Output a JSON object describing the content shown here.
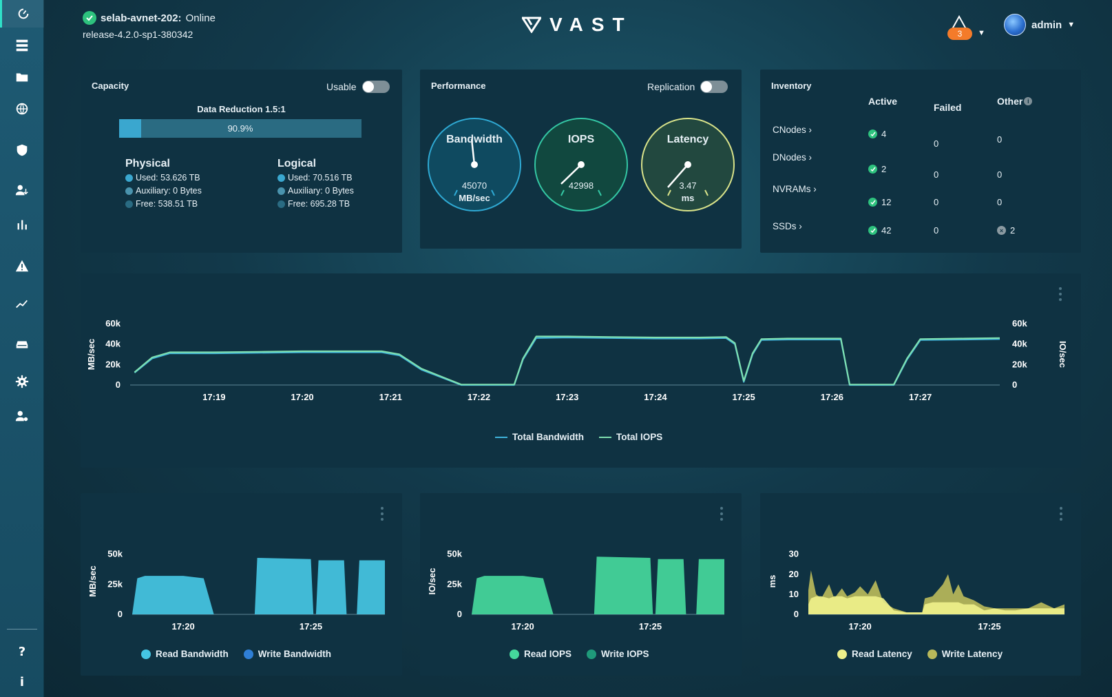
{
  "header": {
    "cluster_name": "selab-avnet-202:",
    "cluster_status": "Online",
    "release": "release-4.2.0-sp1-380342",
    "logo_text": "VAST",
    "alerts_count": "3",
    "user_name": "admin"
  },
  "sidebar": {
    "items": [
      {
        "icon": "dashboard-gauge-icon"
      },
      {
        "icon": "server-list-icon"
      },
      {
        "icon": "folders-icon"
      },
      {
        "icon": "globe-icon"
      },
      {
        "icon": "shield-icon"
      },
      {
        "icon": "user-manage-icon"
      },
      {
        "icon": "bar-chart-icon"
      },
      {
        "icon": "alert-triangle-icon"
      },
      {
        "icon": "analytics-trend-icon"
      },
      {
        "icon": "hardware-drive-icon"
      },
      {
        "icon": "gear-icon"
      },
      {
        "icon": "user-settings-icon"
      }
    ],
    "help": "?",
    "info": "i"
  },
  "capacity": {
    "title": "Capacity",
    "toggle_label": "Usable",
    "data_reduction": "Data Reduction 1.5:1",
    "usage_percent": 90.9,
    "usage_label": "90.9%",
    "physical": {
      "title": "Physical",
      "used": "Used: 53.626 TB",
      "auxiliary": "Auxiliary: 0 Bytes",
      "free": "Free: 538.51 TB"
    },
    "logical": {
      "title": "Logical",
      "used": "Used: 70.516 TB",
      "auxiliary": "Auxiliary: 0 Bytes",
      "free": "Free: 695.28 TB"
    },
    "colors": {
      "used": "#3aa7cf",
      "auxiliary": "#4a93ad",
      "free": "#2a6b82"
    }
  },
  "performance": {
    "title": "Performance",
    "toggle_label": "Replication",
    "gauges": [
      {
        "title": "Bandwidth",
        "value": "45070",
        "unit": "MB/sec",
        "color": "#2fa9d3",
        "fill": "#0f4a60"
      },
      {
        "title": "IOPS",
        "value": "42998",
        "unit": "",
        "color": "#34c7a4",
        "fill": "#11483f"
      },
      {
        "title": "Latency",
        "value": "3.47",
        "unit": "ms",
        "color": "#d9e38a",
        "fill": "#22483f"
      }
    ]
  },
  "inventory": {
    "title": "Inventory",
    "columns": [
      "Active",
      "Failed",
      "Other"
    ],
    "rows": [
      {
        "name": "CNodes ›",
        "active": "4",
        "failed": "0",
        "other": "0"
      },
      {
        "name": "DNodes ›",
        "active": "2",
        "failed": "0",
        "other": "0"
      },
      {
        "name": "NVRAMs ›",
        "active": "12",
        "failed": "0",
        "other": "0"
      },
      {
        "name": "SSDs ›",
        "active": "42",
        "failed": "0",
        "other": "2"
      }
    ]
  },
  "chart_data": [
    {
      "type": "line",
      "title": "",
      "ylabel": "MB/sec",
      "y2label": "IO/sec",
      "ylim": [
        0,
        60000
      ],
      "y_ticks": [
        "0",
        "20k",
        "40k",
        "60k"
      ],
      "x_ticks": [
        "17:19",
        "17:20",
        "17:21",
        "17:22",
        "17:23",
        "17:24",
        "17:25",
        "17:26",
        "17:27"
      ],
      "x_minutes": [
        18.1,
        18.3,
        18.5,
        19.0,
        19.5,
        20.0,
        20.5,
        20.9,
        21.1,
        21.35,
        21.8,
        22.4,
        22.5,
        22.65,
        23.0,
        23.5,
        24.0,
        24.5,
        24.8,
        24.9,
        25.0,
        25.1,
        25.2,
        25.5,
        26.0,
        26.1,
        26.2,
        26.5,
        26.7,
        26.85,
        27.0,
        27.5,
        27.9
      ],
      "series": [
        {
          "name": "Total Bandwidth",
          "color": "#3fb4dc",
          "values": [
            12000,
            26000,
            31000,
            31000,
            31500,
            32000,
            32000,
            32000,
            29000,
            15000,
            0,
            0,
            25000,
            46000,
            46500,
            46000,
            45500,
            45500,
            46000,
            40000,
            3000,
            30000,
            44000,
            44500,
            44500,
            44500,
            0,
            0,
            0,
            25000,
            44000,
            44500,
            45000
          ]
        },
        {
          "name": "Total IOPS",
          "color": "#7fe0b0",
          "values": [
            12500,
            27000,
            32000,
            32000,
            32500,
            33000,
            33000,
            33000,
            30000,
            16000,
            500,
            500,
            26000,
            47500,
            47500,
            47000,
            46500,
            46500,
            47000,
            41000,
            4000,
            31000,
            45000,
            45500,
            45500,
            45500,
            500,
            500,
            500,
            26000,
            45000,
            45500,
            46000
          ]
        }
      ],
      "legend": "bottom"
    },
    {
      "type": "area",
      "ylabel": "MB/sec",
      "y_ticks": [
        "0",
        "25k",
        "50k"
      ],
      "x_ticks": [
        "17:20",
        "17:25"
      ],
      "ylim": [
        0,
        55000
      ],
      "x_minutes": [
        18.0,
        18.2,
        18.5,
        20.0,
        20.8,
        21.2,
        22.8,
        22.9,
        25.0,
        25.1,
        25.2,
        25.3,
        26.3,
        26.4,
        26.8,
        26.9,
        27.9
      ],
      "series": [
        {
          "name": "Read Bandwidth",
          "color": "#45c5e3",
          "values": [
            0,
            30000,
            32000,
            32000,
            30000,
            0,
            0,
            47000,
            46000,
            0,
            0,
            45000,
            45000,
            0,
            0,
            45000,
            45000
          ]
        },
        {
          "name": "Write Bandwidth",
          "color": "#2f7fd6",
          "values": [
            0,
            0,
            0,
            0,
            0,
            0,
            0,
            0,
            0,
            0,
            0,
            0,
            0,
            0,
            0,
            0,
            0
          ]
        }
      ],
      "legend": "bottom"
    },
    {
      "type": "area",
      "ylabel": "IO/sec",
      "y_ticks": [
        "0",
        "25k",
        "50k"
      ],
      "x_ticks": [
        "17:20",
        "17:25"
      ],
      "ylim": [
        0,
        55000
      ],
      "x_minutes": [
        18.0,
        18.2,
        18.5,
        20.0,
        20.8,
        21.2,
        22.8,
        22.9,
        25.0,
        25.1,
        25.2,
        25.3,
        26.3,
        26.4,
        26.8,
        26.9,
        27.9
      ],
      "series": [
        {
          "name": "Read IOPS",
          "color": "#45d89c",
          "values": [
            0,
            30000,
            32000,
            32000,
            30000,
            0,
            0,
            48000,
            47000,
            0,
            0,
            46000,
            46000,
            0,
            0,
            46000,
            46000
          ]
        },
        {
          "name": "Write IOPS",
          "color": "#1f9a7a",
          "values": [
            0,
            0,
            0,
            0,
            0,
            0,
            0,
            0,
            0,
            0,
            0,
            0,
            0,
            0,
            0,
            0,
            0
          ]
        }
      ],
      "legend": "bottom"
    },
    {
      "type": "area",
      "ylabel": "ms",
      "y_ticks": [
        "0",
        "10",
        "20",
        "30"
      ],
      "x_ticks": [
        "17:20",
        "17:25"
      ],
      "ylim": [
        0,
        33
      ],
      "x_minutes": [
        18.0,
        18.1,
        18.3,
        18.5,
        18.8,
        19.0,
        19.3,
        19.5,
        19.8,
        20.0,
        20.3,
        20.6,
        20.9,
        21.3,
        21.8,
        22.4,
        22.5,
        22.8,
        23.0,
        23.2,
        23.4,
        23.6,
        23.8,
        24.0,
        24.4,
        24.8,
        25.2,
        25.6,
        26.0,
        26.5,
        27.0,
        27.5,
        27.9
      ],
      "series": [
        {
          "name": "Read Latency",
          "color": "#eef08a",
          "values": [
            5,
            8,
            9,
            9,
            8,
            9,
            9,
            8,
            9,
            9,
            9,
            9,
            8,
            2,
            1,
            1,
            5,
            6,
            6,
            6,
            6,
            6,
            6,
            5,
            5,
            2,
            3,
            2,
            2,
            3,
            3,
            3,
            3
          ]
        },
        {
          "name": "Write Latency",
          "color": "#b8b85a",
          "values": [
            12,
            22,
            10,
            8,
            15,
            8,
            13,
            9,
            11,
            14,
            10,
            17,
            6,
            3,
            1,
            1,
            8,
            9,
            12,
            15,
            20,
            10,
            15,
            9,
            7,
            4,
            3,
            3,
            3,
            3,
            6,
            3,
            5
          ]
        }
      ],
      "legend": "bottom"
    }
  ]
}
